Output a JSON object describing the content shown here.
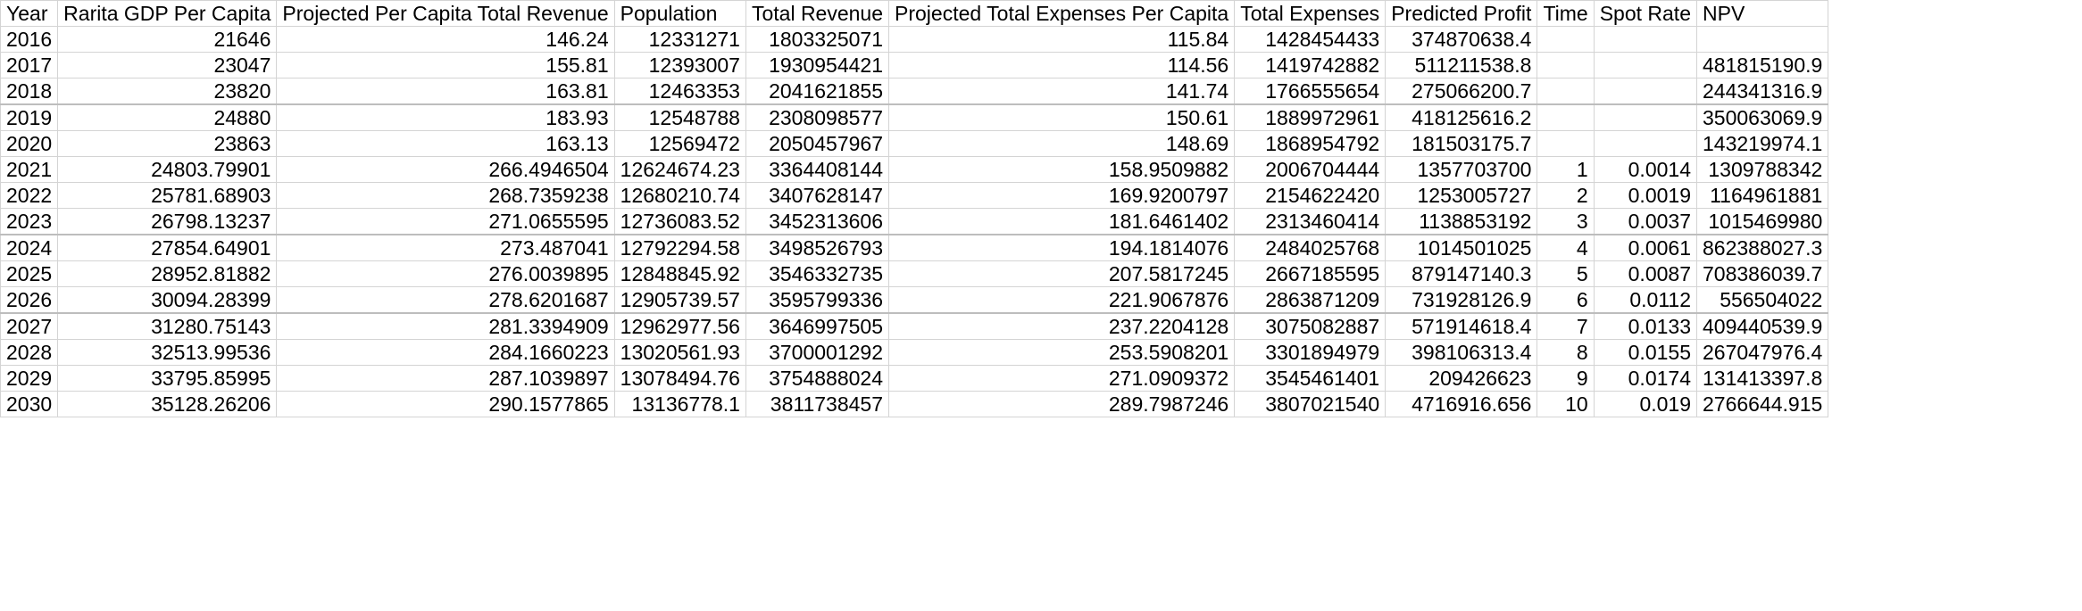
{
  "sheet": {
    "columns": [
      {
        "key": "year",
        "label": "Year"
      },
      {
        "key": "gdp",
        "label": "Rarita GDP Per Capita"
      },
      {
        "key": "rev_pc",
        "label": "Projected Per Capita Total Revenue"
      },
      {
        "key": "pop",
        "label": "Population"
      },
      {
        "key": "rev",
        "label": "Total Revenue"
      },
      {
        "key": "exp_pc",
        "label": "Projected Total Expenses Per Capita"
      },
      {
        "key": "exp",
        "label": "Total Expenses"
      },
      {
        "key": "profit",
        "label": "Predicted Profit"
      },
      {
        "key": "time",
        "label": "Time"
      },
      {
        "key": "spot",
        "label": "Spot Rate"
      },
      {
        "key": "npv",
        "label": "NPV"
      }
    ],
    "rows": [
      {
        "year": "2016",
        "gdp": "21646",
        "rev_pc": "146.24",
        "pop": "12331271",
        "rev": "1803325071",
        "exp_pc": "115.84",
        "exp": "1428454433",
        "profit": "374870638.4",
        "time": "",
        "spot": "",
        "npv": ""
      },
      {
        "year": "2017",
        "gdp": "23047",
        "rev_pc": "155.81",
        "pop": "12393007",
        "rev": "1930954421",
        "exp_pc": "114.56",
        "exp": "1419742882",
        "profit": "511211538.8",
        "time": "",
        "spot": "",
        "npv": "481815190.9"
      },
      {
        "year": "2018",
        "gdp": "23820",
        "rev_pc": "163.81",
        "pop": "12463353",
        "rev": "2041621855",
        "exp_pc": "141.74",
        "exp": "1766555654",
        "profit": "275066200.7",
        "time": "",
        "spot": "",
        "npv": "244341316.9"
      },
      {
        "year": "2019",
        "gdp": "24880",
        "rev_pc": "183.93",
        "pop": "12548788",
        "rev": "2308098577",
        "exp_pc": "150.61",
        "exp": "1889972961",
        "profit": "418125616.2",
        "time": "",
        "spot": "",
        "npv": "350063069.9"
      },
      {
        "year": "2020",
        "gdp": "23863",
        "rev_pc": "163.13",
        "pop": "12569472",
        "rev": "2050457967",
        "exp_pc": "148.69",
        "exp": "1868954792",
        "profit": "181503175.7",
        "time": "",
        "spot": "",
        "npv": "143219974.1"
      },
      {
        "year": "2021",
        "gdp": "24803.79901",
        "rev_pc": "266.4946504",
        "pop": "12624674.23",
        "rev": "3364408144",
        "exp_pc": "158.9509882",
        "exp": "2006704444",
        "profit": "1357703700",
        "time": "1",
        "spot": "0.0014",
        "npv": "1309788342"
      },
      {
        "year": "2022",
        "gdp": "25781.68903",
        "rev_pc": "268.7359238",
        "pop": "12680210.74",
        "rev": "3407628147",
        "exp_pc": "169.9200797",
        "exp": "2154622420",
        "profit": "1253005727",
        "time": "2",
        "spot": "0.0019",
        "npv": "1164961881"
      },
      {
        "year": "2023",
        "gdp": "26798.13237",
        "rev_pc": "271.0655595",
        "pop": "12736083.52",
        "rev": "3452313606",
        "exp_pc": "181.6461402",
        "exp": "2313460414",
        "profit": "1138853192",
        "time": "3",
        "spot": "0.0037",
        "npv": "1015469980"
      },
      {
        "year": "2024",
        "gdp": "27854.64901",
        "rev_pc": "273.487041",
        "pop": "12792294.58",
        "rev": "3498526793",
        "exp_pc": "194.1814076",
        "exp": "2484025768",
        "profit": "1014501025",
        "time": "4",
        "spot": "0.0061",
        "npv": "862388027.3"
      },
      {
        "year": "2025",
        "gdp": "28952.81882",
        "rev_pc": "276.0039895",
        "pop": "12848845.92",
        "rev": "3546332735",
        "exp_pc": "207.5817245",
        "exp": "2667185595",
        "profit": "879147140.3",
        "time": "5",
        "spot": "0.0087",
        "npv": "708386039.7"
      },
      {
        "year": "2026",
        "gdp": "30094.28399",
        "rev_pc": "278.6201687",
        "pop": "12905739.57",
        "rev": "3595799336",
        "exp_pc": "221.9067876",
        "exp": "2863871209",
        "profit": "731928126.9",
        "time": "6",
        "spot": "0.0112",
        "npv": "556504022"
      },
      {
        "year": "2027",
        "gdp": "31280.75143",
        "rev_pc": "281.3394909",
        "pop": "12962977.56",
        "rev": "3646997505",
        "exp_pc": "237.2204128",
        "exp": "3075082887",
        "profit": "571914618.4",
        "time": "7",
        "spot": "0.0133",
        "npv": "409440539.9"
      },
      {
        "year": "2028",
        "gdp": "32513.99536",
        "rev_pc": "284.1660223",
        "pop": "13020561.93",
        "rev": "3700001292",
        "exp_pc": "253.5908201",
        "exp": "3301894979",
        "profit": "398106313.4",
        "time": "8",
        "spot": "0.0155",
        "npv": "267047976.4"
      },
      {
        "year": "2029",
        "gdp": "33795.85995",
        "rev_pc": "287.1039897",
        "pop": "13078494.76",
        "rev": "3754888024",
        "exp_pc": "271.0909372",
        "exp": "3545461401",
        "profit": "209426623",
        "time": "9",
        "spot": "0.0174",
        "npv": "131413397.8"
      },
      {
        "year": "2030",
        "gdp": "35128.26206",
        "rev_pc": "290.1577865",
        "pop": "13136778.1",
        "rev": "3811738457",
        "exp_pc": "289.7987246",
        "exp": "3807021540",
        "profit": "4716916.656",
        "time": "10",
        "spot": "0.019",
        "npv": "2766644.915"
      }
    ]
  }
}
